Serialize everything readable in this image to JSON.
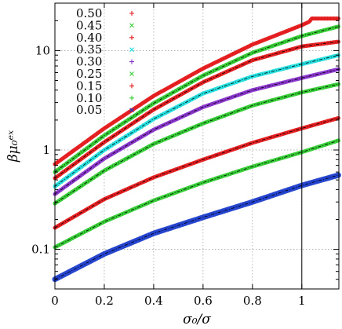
{
  "chart_data": {
    "type": "scatter",
    "xlabel": "σ₀/σ",
    "ylabel": "βμ₀ᵉˣ",
    "xlim": [
      0,
      1.15
    ],
    "ylim": [
      0.04,
      30
    ],
    "yscale": "log",
    "grid": true,
    "legend_position": "top-left",
    "xticks": [
      {
        "value": 0,
        "label": "0"
      },
      {
        "value": 0.2,
        "label": "0.2"
      },
      {
        "value": 0.4,
        "label": "0.4"
      },
      {
        "value": 0.6,
        "label": "0.6"
      },
      {
        "value": 0.8,
        "label": "0.8"
      },
      {
        "value": 1,
        "label": "1"
      }
    ],
    "yticks": [
      {
        "value": 0.1,
        "label": "0.1"
      },
      {
        "value": 1,
        "label": "1"
      },
      {
        "value": 10,
        "label": "10"
      }
    ],
    "vline_x": 1,
    "series": [
      {
        "name": "0.50",
        "color": "#e41a1c",
        "marker": "+",
        "x": [
          0,
          0.2,
          0.4,
          0.6,
          0.8,
          1.0,
          1.03,
          1.04,
          1.15
        ],
        "y": [
          0.72,
          1.65,
          3.5,
          6.6,
          11.5,
          18.0,
          19.5,
          21.0,
          21.0
        ]
      },
      {
        "name": "0.45",
        "color": "#33cc33",
        "marker": "×",
        "x": [
          0,
          0.2,
          0.4,
          0.6,
          0.8,
          1.0,
          1.15
        ],
        "y": [
          0.6,
          1.4,
          2.95,
          5.6,
          9.5,
          14.0,
          17.5
        ]
      },
      {
        "name": "0.40",
        "color": "#e41a1c",
        "marker": "+",
        "x": [
          0,
          0.2,
          0.4,
          0.6,
          0.8,
          1.0,
          1.15
        ],
        "y": [
          0.52,
          1.2,
          2.55,
          4.8,
          8.0,
          11.0,
          12.3
        ]
      },
      {
        "name": "0.35",
        "color": "#22dddd",
        "marker": "×",
        "x": [
          0,
          0.2,
          0.4,
          0.6,
          0.8,
          1.0,
          1.15
        ],
        "y": [
          0.43,
          1.0,
          2.05,
          3.7,
          5.5,
          7.3,
          9.0
        ]
      },
      {
        "name": "0.30",
        "color": "#8833cc",
        "marker": "+",
        "x": [
          0,
          0.2,
          0.4,
          0.6,
          0.8,
          1.0,
          1.15
        ],
        "y": [
          0.36,
          0.82,
          1.6,
          2.7,
          4.0,
          5.3,
          6.5
        ]
      },
      {
        "name": "0.25",
        "color": "#33cc33",
        "marker": "×",
        "x": [
          0,
          0.2,
          0.4,
          0.6,
          0.8,
          1.0,
          1.15
        ],
        "y": [
          0.29,
          0.62,
          1.15,
          1.85,
          2.8,
          3.8,
          4.6
        ]
      },
      {
        "name": "0.15",
        "color": "#e41a1c",
        "marker": "+",
        "x": [
          0,
          0.2,
          0.4,
          0.6,
          0.8,
          1.0,
          1.15
        ],
        "y": [
          0.165,
          0.32,
          0.53,
          0.8,
          1.18,
          1.65,
          2.1
        ]
      },
      {
        "name": "0.10",
        "color": "#33cc33",
        "marker": "+",
        "x": [
          0,
          0.2,
          0.4,
          0.6,
          0.8,
          1.0,
          1.15
        ],
        "y": [
          0.105,
          0.19,
          0.31,
          0.47,
          0.68,
          0.95,
          1.25
        ]
      },
      {
        "name": "0.05",
        "color": "#1f3fcc",
        "marker": "×",
        "x": [
          0,
          0.2,
          0.4,
          0.6,
          0.8,
          1.0,
          1.15
        ],
        "y": [
          0.05,
          0.09,
          0.145,
          0.21,
          0.3,
          0.44,
          0.56
        ]
      }
    ]
  }
}
